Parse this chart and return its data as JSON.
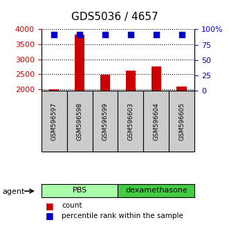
{
  "title": "GDS5036 / 4657",
  "samples": [
    "GSM596597",
    "GSM596598",
    "GSM596599",
    "GSM596603",
    "GSM596604",
    "GSM596605"
  ],
  "counts": [
    2000,
    3820,
    2490,
    2610,
    2760,
    2090
  ],
  "percentiles": [
    91,
    92,
    91,
    92,
    92,
    91
  ],
  "bar_color": "#cc0000",
  "dot_color": "#0000cc",
  "ylim_left": [
    1950,
    4000
  ],
  "yticks_left": [
    2000,
    2500,
    3000,
    3500,
    4000
  ],
  "ylim_right": [
    0,
    100
  ],
  "yticks_right": [
    0,
    25,
    50,
    75,
    100
  ],
  "groups": [
    {
      "label": "PBS",
      "indices": [
        0,
        1,
        2
      ],
      "color": "#aaffaa"
    },
    {
      "label": "dexamethasone",
      "indices": [
        3,
        4,
        5
      ],
      "color": "#44cc44"
    }
  ],
  "agent_label": "agent",
  "legend_count": "count",
  "legend_percentile": "percentile rank within the sample",
  "grid_color": "#000000",
  "background_color": "#ffffff",
  "plot_bg": "#ffffff",
  "sample_bg": "#cccccc"
}
